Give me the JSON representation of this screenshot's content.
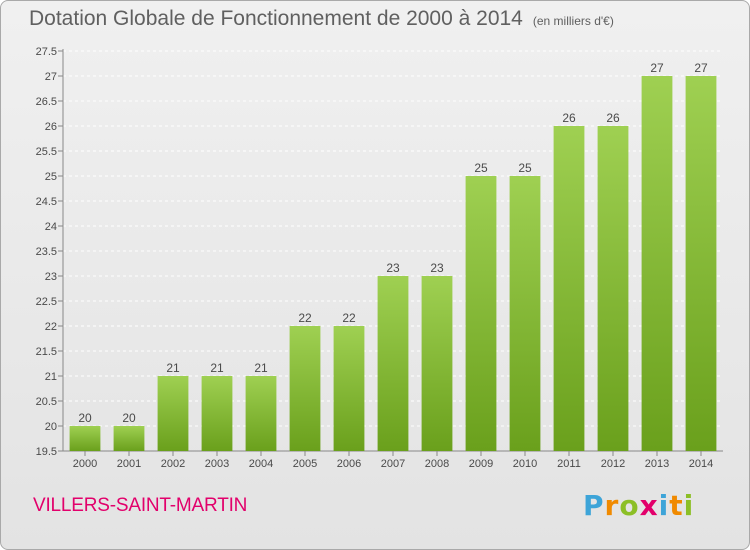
{
  "header": {
    "title": "Dotation Globale de Fonctionnement de 2000 à 2014",
    "subtitle": "(en milliers d'€)"
  },
  "footer": {
    "commune": "VILLERS-SAINT-MARTIN",
    "logo_letters": [
      "P",
      "r",
      "o",
      "x",
      "i",
      "t",
      "i"
    ],
    "logo_colors": [
      "#3da4d8",
      "#f08a00",
      "#8cbf26",
      "#e2006b",
      "#3da4d8",
      "#f08a00",
      "#8cbf26"
    ]
  },
  "colors": {
    "bar_light": "#9fd052",
    "bar_dark": "#6aa01c",
    "grid": "#ffffff"
  },
  "chart_data": {
    "type": "bar",
    "title": "Dotation Globale de Fonctionnement de 2000 à 2014",
    "subtitle": "(en milliers d'€)",
    "categories": [
      "2000",
      "2001",
      "2002",
      "2003",
      "2004",
      "2005",
      "2006",
      "2007",
      "2008",
      "2009",
      "2010",
      "2011",
      "2012",
      "2013",
      "2014"
    ],
    "values": [
      20,
      20,
      21,
      21,
      21,
      22,
      22,
      23,
      23,
      25,
      25,
      26,
      26,
      27,
      27
    ],
    "data_labels": [
      "20",
      "20",
      "21",
      "21",
      "21",
      "22",
      "22",
      "23",
      "23",
      "25",
      "25",
      "26",
      "26",
      "27",
      "27"
    ],
    "ylim": [
      19.5,
      27.5
    ],
    "yticks": [
      "19.5",
      "20",
      "20.5",
      "21",
      "21.5",
      "22",
      "22.5",
      "23",
      "23.5",
      "24",
      "24.5",
      "25",
      "25.5",
      "26",
      "26.5",
      "27",
      "27.5"
    ],
    "grid": true
  }
}
